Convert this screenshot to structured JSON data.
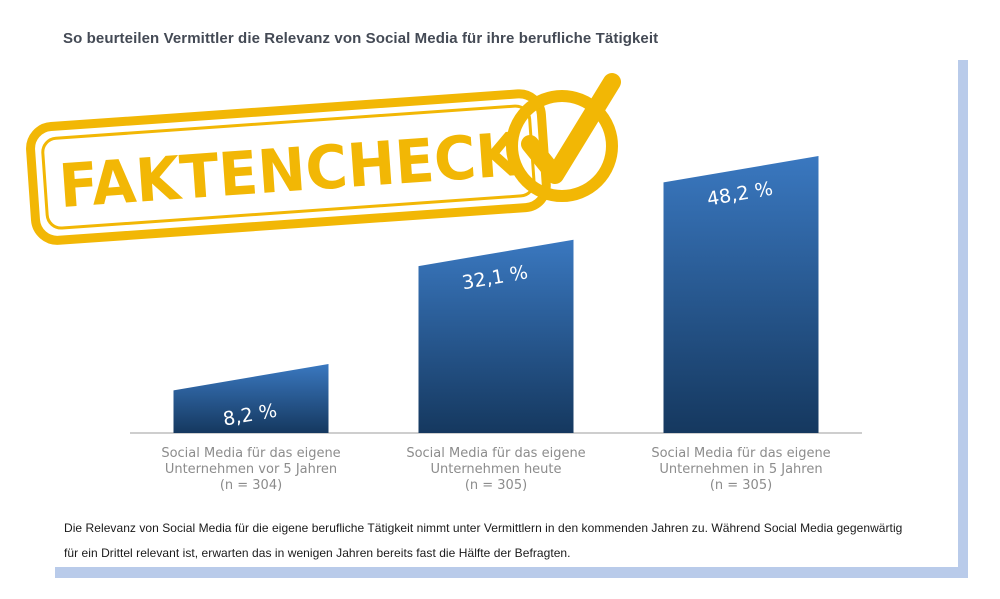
{
  "header": {
    "title": "So beurteilen Vermittler die Relevanz von Social Media für ihre berufliche Tätigkeit"
  },
  "stamp": {
    "text": "FAKTENCHECK",
    "color": "#f2b705"
  },
  "chart_data": {
    "type": "bar",
    "title": "So beurteilen Vermittler die Relevanz von Social Media für ihre berufliche Tätigkeit",
    "categories": [
      [
        "Social Media für das eigene",
        "Unternehmen vor 5 Jahren",
        "(n = 304)"
      ],
      [
        "Social Media für das eigene",
        "Unternehmen heute",
        "(n = 305)"
      ],
      [
        "Social Media für das eigene",
        "Unternehmen in 5 Jahren",
        "(n = 305)"
      ]
    ],
    "values": [
      8.2,
      32.1,
      48.2
    ],
    "value_labels": [
      "8,2 %",
      "32,1 %",
      "48,2 %"
    ],
    "unit": "%",
    "bar_color_top": "#3a78c0",
    "bar_color_bottom": "#15385f",
    "grid": false,
    "legend": "none"
  },
  "footnote": {
    "line1": "Die Relevanz von Social Media für die eigene berufliche Tätigkeit nimmt unter Vermittlern in den kommenden Jahren zu. Während Social Media gegenwärtig",
    "line2": "für ein Drittel relevant ist, erwarten das in wenigen Jahren bereits fast die Hälfte der Befragten."
  }
}
